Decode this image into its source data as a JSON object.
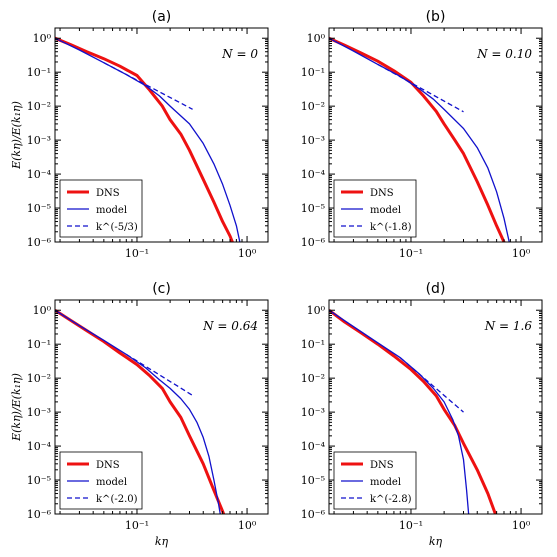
{
  "colors": {
    "dns": "#ee1111",
    "model": "#1111cc",
    "fit": "#1111cc",
    "axis": "#000000"
  },
  "chart_data": [
    {
      "type": "line",
      "panel_label": "(a)",
      "parameter_label": "N = 0",
      "xlabel": "",
      "ylabel": "E(kη)/E(k₁η)",
      "x_scale": "log",
      "y_scale": "log",
      "xlim": [
        0.018,
        1.55
      ],
      "ylim": [
        1e-06,
        2.0
      ],
      "x_ticks": [
        0.1,
        1
      ],
      "x_tick_labels": [
        "10⁻¹",
        "10⁰"
      ],
      "y_ticks": [
        1e-06,
        1e-05,
        0.0001,
        0.001,
        0.01,
        0.1,
        1
      ],
      "y_tick_labels": [
        "10⁻⁶",
        "10⁻⁵",
        "10⁻⁴",
        "10⁻³",
        "10⁻²",
        "10⁻¹",
        "10⁰"
      ],
      "legend_position": "lower-left",
      "series": [
        {
          "name": "DNS",
          "style": "thick-solid-red",
          "x": [
            0.018,
            0.025,
            0.035,
            0.05,
            0.07,
            0.1,
            0.13,
            0.17,
            0.2,
            0.25,
            0.3,
            0.4,
            0.5,
            0.6,
            0.7,
            0.8
          ],
          "y": [
            1.0,
            0.65,
            0.4,
            0.25,
            0.15,
            0.08,
            0.03,
            0.01,
            0.004,
            0.0015,
            0.0005,
            7e-05,
            1.5e-05,
            4e-06,
            1.5e-06,
            5e-07
          ]
        },
        {
          "name": "model",
          "style": "thin-solid-blue",
          "x": [
            0.018,
            0.03,
            0.05,
            0.08,
            0.12,
            0.16,
            0.2,
            0.3,
            0.4,
            0.5,
            0.6,
            0.7,
            0.8,
            0.9
          ],
          "y": [
            1.0,
            0.45,
            0.19,
            0.085,
            0.04,
            0.02,
            0.01,
            0.003,
            0.0008,
            0.0002,
            5e-05,
            1.2e-05,
            3e-06,
            5e-07
          ]
        },
        {
          "name": "k^(-5/3)",
          "style": "dashed-blue",
          "x": [
            0.05,
            0.32
          ],
          "y": [
            0.19,
            0.0081
          ]
        }
      ]
    },
    {
      "type": "line",
      "panel_label": "(b)",
      "parameter_label": "N = 0.10",
      "xlabel": "",
      "ylabel": "",
      "x_scale": "log",
      "y_scale": "log",
      "xlim": [
        0.018,
        1.55
      ],
      "ylim": [
        1e-06,
        2.0
      ],
      "x_ticks": [
        0.1,
        1
      ],
      "x_tick_labels": [
        "10⁻¹",
        "10⁰"
      ],
      "y_ticks": [
        1e-06,
        1e-05,
        0.0001,
        0.001,
        0.01,
        0.1,
        1
      ],
      "y_tick_labels": [
        "10⁻⁶",
        "10⁻⁵",
        "10⁻⁴",
        "10⁻³",
        "10⁻²",
        "10⁻¹",
        "10⁰"
      ],
      "legend_position": "lower-left",
      "series": [
        {
          "name": "DNS",
          "style": "thick-solid-red",
          "x": [
            0.018,
            0.025,
            0.035,
            0.05,
            0.07,
            0.1,
            0.13,
            0.17,
            0.2,
            0.25,
            0.3,
            0.4,
            0.5,
            0.6,
            0.7,
            0.8
          ],
          "y": [
            1.0,
            0.62,
            0.37,
            0.21,
            0.11,
            0.05,
            0.02,
            0.007,
            0.003,
            0.001,
            0.0004,
            6e-05,
            1.2e-05,
            3e-06,
            1e-06,
            4e-07
          ]
        },
        {
          "name": "model",
          "style": "thin-solid-blue",
          "x": [
            0.018,
            0.03,
            0.05,
            0.08,
            0.12,
            0.16,
            0.2,
            0.3,
            0.4,
            0.5,
            0.6,
            0.7,
            0.8
          ],
          "y": [
            1.0,
            0.42,
            0.17,
            0.075,
            0.032,
            0.016,
            0.008,
            0.0022,
            0.0006,
            0.00015,
            3e-05,
            5e-06,
            7e-07
          ]
        },
        {
          "name": "k^(-1.8)",
          "style": "dashed-blue",
          "x": [
            0.05,
            0.3
          ],
          "y": [
            0.17,
            0.0068
          ]
        }
      ]
    },
    {
      "type": "line",
      "panel_label": "(c)",
      "parameter_label": "N = 0.64",
      "xlabel": "kη",
      "ylabel": "E(kη)/E(k₁η)",
      "x_scale": "log",
      "y_scale": "log",
      "xlim": [
        0.018,
        1.55
      ],
      "ylim": [
        1e-06,
        2.0
      ],
      "x_ticks": [
        0.1,
        1
      ],
      "x_tick_labels": [
        "10⁻¹",
        "10⁰"
      ],
      "y_ticks": [
        1e-06,
        1e-05,
        0.0001,
        0.001,
        0.01,
        0.1,
        1
      ],
      "y_tick_labels": [
        "10⁻⁶",
        "10⁻⁵",
        "10⁻⁴",
        "10⁻³",
        "10⁻²",
        "10⁻¹",
        "10⁰"
      ],
      "legend_position": "lower-left",
      "series": [
        {
          "name": "DNS",
          "style": "thick-solid-red",
          "x": [
            0.018,
            0.025,
            0.035,
            0.05,
            0.07,
            0.1,
            0.13,
            0.17,
            0.2,
            0.25,
            0.3,
            0.4,
            0.5,
            0.6,
            0.65
          ],
          "y": [
            1.0,
            0.5,
            0.25,
            0.12,
            0.055,
            0.025,
            0.012,
            0.005,
            0.002,
            0.0007,
            0.0002,
            3e-05,
            5e-06,
            1.2e-06,
            6e-07
          ]
        },
        {
          "name": "model",
          "style": "thin-solid-blue",
          "x": [
            0.018,
            0.03,
            0.05,
            0.08,
            0.12,
            0.16,
            0.2,
            0.25,
            0.3,
            0.35,
            0.4,
            0.45,
            0.5,
            0.55,
            0.6
          ],
          "y": [
            1.0,
            0.35,
            0.13,
            0.05,
            0.02,
            0.009,
            0.005,
            0.0025,
            0.0012,
            0.0005,
            0.00018,
            5e-05,
            1e-05,
            2e-06,
            4e-07
          ]
        },
        {
          "name": "k^(-2.0)",
          "style": "dashed-blue",
          "x": [
            0.08,
            0.32
          ],
          "y": [
            0.05,
            0.0031
          ]
        }
      ]
    },
    {
      "type": "line",
      "panel_label": "(d)",
      "parameter_label": "N = 1.6",
      "xlabel": "kη",
      "ylabel": "",
      "x_scale": "log",
      "y_scale": "log",
      "xlim": [
        0.018,
        1.55
      ],
      "ylim": [
        1e-06,
        2.0
      ],
      "x_ticks": [
        0.1,
        1
      ],
      "x_tick_labels": [
        "10⁻¹",
        "10⁰"
      ],
      "y_ticks": [
        1e-06,
        1e-05,
        0.0001,
        0.001,
        0.01,
        0.1,
        1
      ],
      "y_tick_labels": [
        "10⁻⁶",
        "10⁻⁵",
        "10⁻⁴",
        "10⁻³",
        "10⁻²",
        "10⁻¹",
        "10⁰"
      ],
      "legend_position": "lower-left",
      "series": [
        {
          "name": "DNS",
          "style": "thick-solid-red",
          "x": [
            0.018,
            0.025,
            0.035,
            0.05,
            0.07,
            0.1,
            0.13,
            0.17,
            0.2,
            0.25,
            0.3,
            0.4,
            0.5,
            0.6
          ],
          "y": [
            1.0,
            0.45,
            0.22,
            0.1,
            0.045,
            0.018,
            0.008,
            0.003,
            0.0012,
            0.0004,
            0.00012,
            2e-05,
            4e-06,
            8e-07
          ]
        },
        {
          "name": "model",
          "style": "thin-solid-blue",
          "x": [
            0.018,
            0.03,
            0.05,
            0.08,
            0.12,
            0.16,
            0.2,
            0.24,
            0.27,
            0.3,
            0.32,
            0.34
          ],
          "y": [
            1.0,
            0.33,
            0.11,
            0.04,
            0.013,
            0.005,
            0.002,
            0.0006,
            0.0002,
            4e-05,
            5e-06,
            5e-07
          ]
        },
        {
          "name": "k^(-2.8)",
          "style": "dashed-blue",
          "x": [
            0.08,
            0.3
          ],
          "y": [
            0.04,
            0.001
          ]
        }
      ]
    }
  ]
}
